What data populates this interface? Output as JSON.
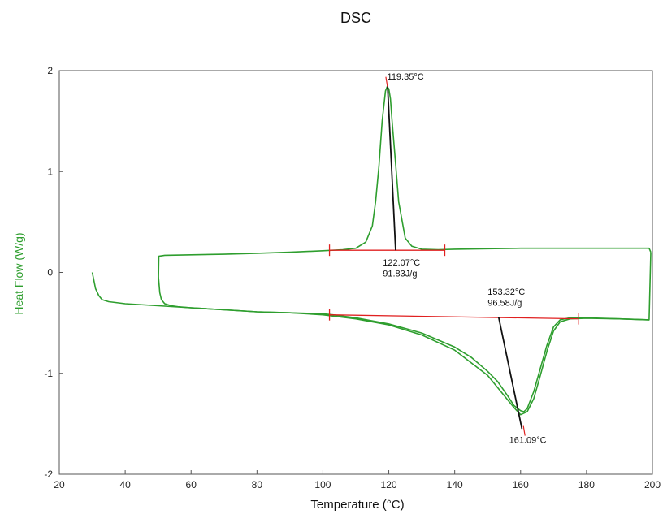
{
  "chart_data": {
    "type": "line",
    "title": "DSC",
    "xlabel": "Temperature (°C)",
    "ylabel": "Heat Flow (W/g)",
    "xlim": [
      20,
      200
    ],
    "ylim": [
      -2,
      2
    ],
    "xticks": [
      20,
      40,
      60,
      80,
      100,
      120,
      140,
      160,
      180,
      200
    ],
    "yticks": [
      -2,
      -1,
      0,
      1,
      2
    ],
    "grid": false,
    "series_color": "#2e9e2e",
    "baseline_color": "#e02020",
    "tangent_color": "#111111",
    "series": [
      {
        "x": [
          30,
          30.5,
          31,
          32,
          33,
          35,
          40,
          50,
          60,
          70,
          80,
          90,
          100,
          103,
          110,
          120,
          130,
          140,
          145,
          150,
          153,
          156,
          158,
          160,
          161,
          162,
          164,
          166,
          168,
          170,
          172,
          175,
          180,
          190,
          199,
          199.5
        ],
        "y": [
          0,
          -0.08,
          -0.16,
          -0.23,
          -0.27,
          -0.29,
          -0.31,
          -0.33,
          -0.35,
          -0.37,
          -0.39,
          -0.4,
          -0.41,
          -0.42,
          -0.45,
          -0.51,
          -0.6,
          -0.74,
          -0.84,
          -0.98,
          -1.08,
          -1.22,
          -1.32,
          -1.37,
          -1.38,
          -1.35,
          -1.18,
          -0.95,
          -0.72,
          -0.54,
          -0.47,
          -0.45,
          -0.45,
          -0.46,
          -0.47,
          0.2
        ]
      },
      {
        "x": [
          199.5,
          199,
          190,
          180,
          170,
          160,
          150,
          140,
          135,
          130,
          127,
          125,
          123,
          122,
          121,
          120.5,
          120,
          119.5,
          119,
          118,
          117,
          116,
          115,
          113,
          110,
          106,
          100,
          90,
          80,
          70,
          60,
          52,
          50.2,
          50.1,
          50.5,
          51,
          52,
          54,
          56,
          60,
          70,
          80,
          90,
          100,
          110,
          120,
          130,
          140,
          150,
          158,
          160,
          162,
          164,
          166,
          168,
          170,
          172,
          175,
          180,
          190,
          199
        ],
        "y": [
          0.2,
          0.24,
          0.24,
          0.24,
          0.24,
          0.24,
          0.235,
          0.23,
          0.225,
          0.23,
          0.26,
          0.34,
          0.7,
          1.1,
          1.5,
          1.72,
          1.82,
          1.84,
          1.8,
          1.5,
          1.05,
          0.7,
          0.46,
          0.3,
          0.24,
          0.225,
          0.215,
          0.2,
          0.19,
          0.18,
          0.175,
          0.17,
          0.16,
          -0.05,
          -0.2,
          -0.27,
          -0.31,
          -0.33,
          -0.34,
          -0.35,
          -0.37,
          -0.39,
          -0.4,
          -0.42,
          -0.46,
          -0.52,
          -0.62,
          -0.77,
          -1.02,
          -1.34,
          -1.41,
          -1.38,
          -1.25,
          -1.02,
          -0.78,
          -0.58,
          -0.49,
          -0.46,
          -0.455,
          -0.46,
          -0.47
        ]
      }
    ],
    "annotations": [
      {
        "text": "119.35°C",
        "x": 119.5,
        "y": 1.91
      },
      {
        "text": "122.07°C",
        "x": 118.2,
        "y": 0.07
      },
      {
        "text": "91.83J/g",
        "x": 118.2,
        "y": -0.04
      },
      {
        "text": "153.32°C",
        "x": 150.0,
        "y": -0.22
      },
      {
        "text": "96.58J/g",
        "x": 150.0,
        "y": -0.33
      },
      {
        "text": "161.09°C",
        "x": 156.5,
        "y": -1.69
      }
    ],
    "baselines": [
      {
        "x": [
          102,
          137
        ],
        "y": [
          0.22,
          0.22
        ],
        "markers": [
          102,
          137
        ]
      },
      {
        "x": [
          102,
          177.5
        ],
        "y": [
          -0.42,
          -0.46
        ],
        "markers": [
          102,
          177.5
        ]
      }
    ],
    "tangent_lines": [
      {
        "x": [
          119.6,
          122.07
        ],
        "y": [
          1.87,
          0.22
        ]
      },
      {
        "x": [
          153.32,
          160.4
        ],
        "y": [
          -0.44,
          -1.55
        ]
      }
    ],
    "peak_markers": [
      {
        "x": 119.35,
        "y": 1.89
      },
      {
        "x": 161.09,
        "y": -1.57
      }
    ]
  }
}
